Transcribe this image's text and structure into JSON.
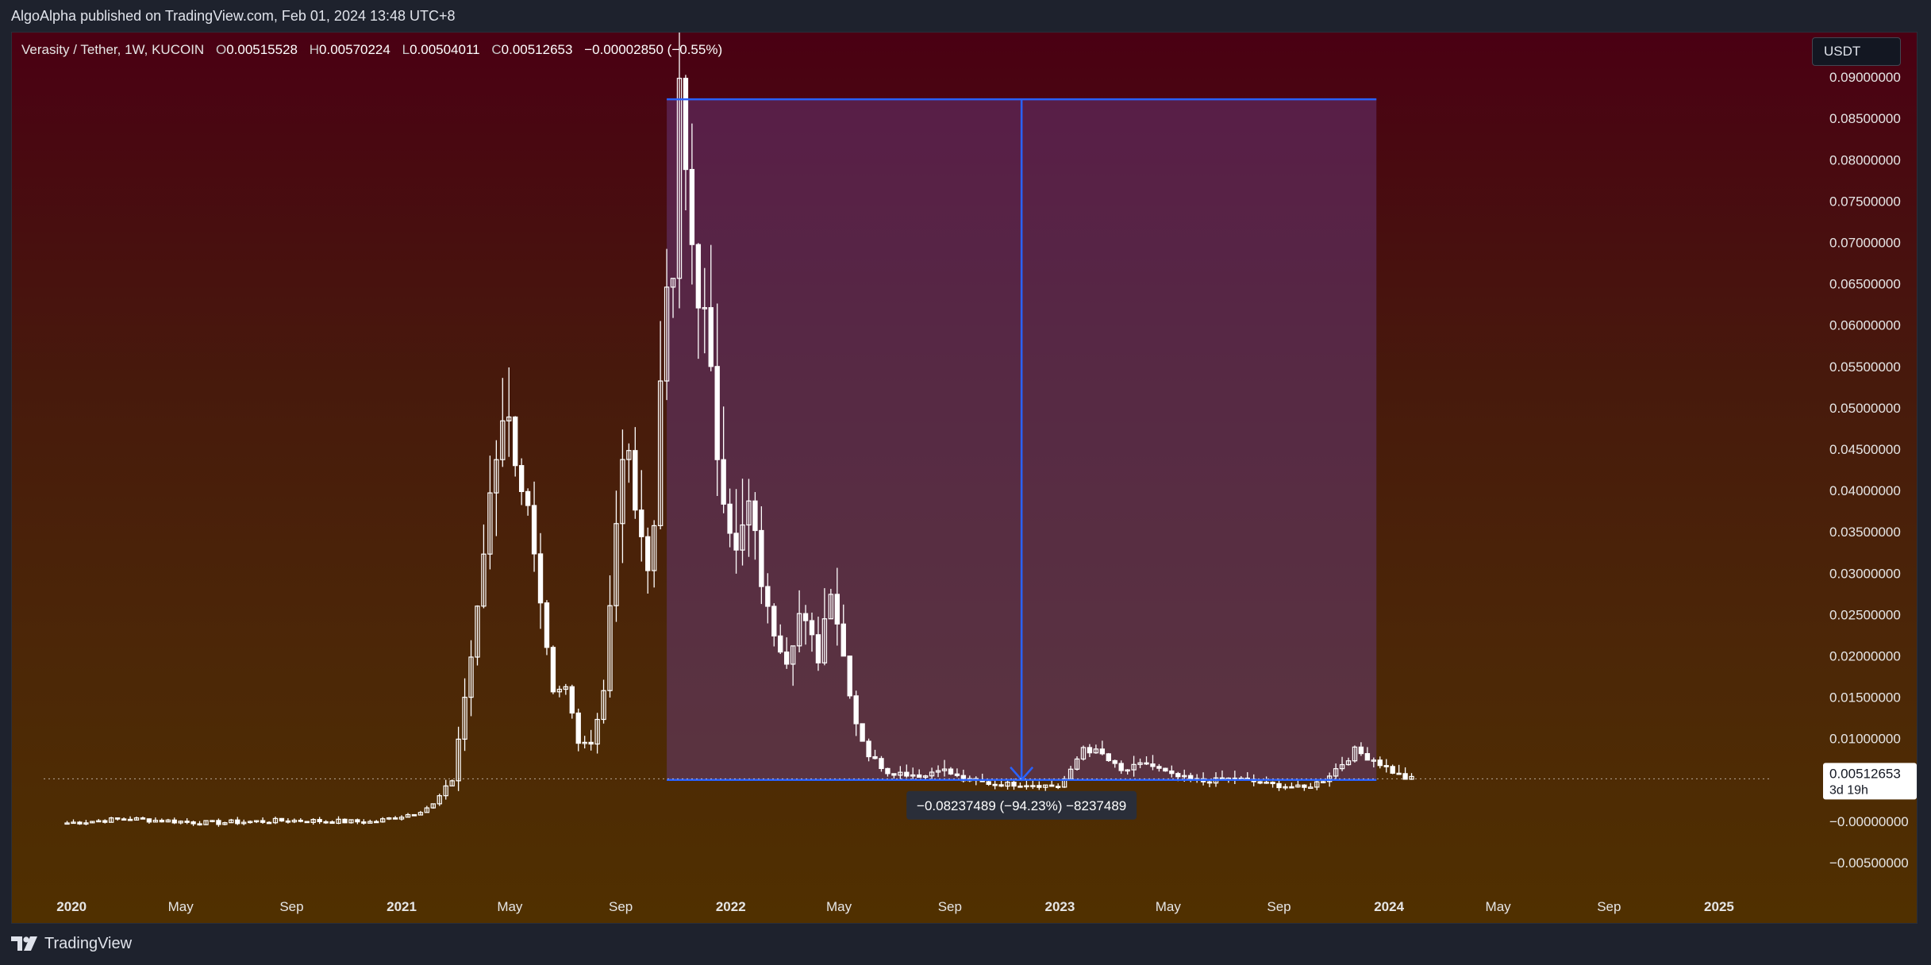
{
  "header": {
    "published": "AlgoAlpha published on TradingView.com, Feb 01, 2024 13:48 UTC+8"
  },
  "legend": {
    "symbol": "Verasity / Tether, 1W, KUCOIN",
    "o_label": "O",
    "o": "0.00515528",
    "h_label": "H",
    "h": "0.00570224",
    "l_label": "L",
    "l": "0.00504011",
    "c_label": "C",
    "c": "0.00512653",
    "change": "−0.00002850 (−0.55%)"
  },
  "currency_button": {
    "label": "USDT"
  },
  "footer": {
    "brand": "TradingView"
  },
  "colors": {
    "candle": "#ffffff",
    "measure": "#2962ff",
    "measure_fill": "#6a3f8a",
    "tooltip_bg": "#2a2e39"
  },
  "chart_data": {
    "type": "candlestick",
    "xlabel": "",
    "ylabel": "",
    "ylim": [
      -0.0075,
      0.0925
    ],
    "xlim": [
      "2019-12-01",
      "2025-03-01"
    ],
    "yticks": [
      "0.09000000",
      "0.08500000",
      "0.08000000",
      "0.07500000",
      "0.07000000",
      "0.06500000",
      "0.06000000",
      "0.05500000",
      "0.05000000",
      "0.04500000",
      "0.04000000",
      "0.03500000",
      "0.03000000",
      "0.02500000",
      "0.02000000",
      "0.01500000",
      "0.01000000",
      "0.00500000",
      "−0.00000000",
      "−0.00500000"
    ],
    "xticks": [
      {
        "label": "2020",
        "date": "2020-01-01"
      },
      {
        "label": "May",
        "date": "2020-05-01"
      },
      {
        "label": "Sep",
        "date": "2020-09-01"
      },
      {
        "label": "2021",
        "date": "2021-01-01"
      },
      {
        "label": "May",
        "date": "2021-05-01"
      },
      {
        "label": "Sep",
        "date": "2021-09-01"
      },
      {
        "label": "2022",
        "date": "2022-01-01"
      },
      {
        "label": "May",
        "date": "2022-05-01"
      },
      {
        "label": "Sep",
        "date": "2022-09-01"
      },
      {
        "label": "2023",
        "date": "2023-01-01"
      },
      {
        "label": "May",
        "date": "2023-05-01"
      },
      {
        "label": "Sep",
        "date": "2023-09-01"
      },
      {
        "label": "2024",
        "date": "2024-01-01"
      },
      {
        "label": "May",
        "date": "2024-05-01"
      },
      {
        "label": "Sep",
        "date": "2024-09-01"
      },
      {
        "label": "2025",
        "date": "2025-01-01"
      }
    ],
    "price_label": {
      "value": "0.00512653",
      "countdown": "3d 19h"
    },
    "measure": {
      "start_date": "2021-10-22",
      "end_date": "2023-12-18",
      "high": 0.0873,
      "low": 0.005,
      "label": "−0.08237489 (−94.23%) −8237489"
    },
    "anchors": [
      {
        "date": "2019-12-27",
        "price": -0.0002
      },
      {
        "date": "2020-03-01",
        "price": 0.0003
      },
      {
        "date": "2020-06-01",
        "price": -0.0002
      },
      {
        "date": "2020-09-01",
        "price": 0.0001
      },
      {
        "date": "2020-12-01",
        "price": -0.0001
      },
      {
        "date": "2021-01-15",
        "price": 0.001
      },
      {
        "date": "2021-02-05",
        "price": 0.002
      },
      {
        "date": "2021-02-26",
        "price": 0.005
      },
      {
        "date": "2021-03-12",
        "price": 0.015
      },
      {
        "date": "2021-03-26",
        "price": 0.025
      },
      {
        "date": "2021-04-09",
        "price": 0.04
      },
      {
        "date": "2021-04-23",
        "price": 0.05
      },
      {
        "date": "2021-05-07",
        "price": 0.045
      },
      {
        "date": "2021-05-21",
        "price": 0.037
      },
      {
        "date": "2021-06-04",
        "price": 0.025
      },
      {
        "date": "2021-06-18",
        "price": 0.015
      },
      {
        "date": "2021-07-02",
        "price": 0.016
      },
      {
        "date": "2021-07-16",
        "price": 0.01
      },
      {
        "date": "2021-07-30",
        "price": 0.0095
      },
      {
        "date": "2021-08-13",
        "price": 0.016
      },
      {
        "date": "2021-08-27",
        "price": 0.035
      },
      {
        "date": "2021-09-03",
        "price": 0.045
      },
      {
        "date": "2021-09-17",
        "price": 0.04
      },
      {
        "date": "2021-10-01",
        "price": 0.03
      },
      {
        "date": "2021-10-08",
        "price": 0.036
      },
      {
        "date": "2021-10-15",
        "price": 0.056
      },
      {
        "date": "2021-10-29",
        "price": 0.066
      },
      {
        "date": "2021-11-05",
        "price": 0.086
      },
      {
        "date": "2021-11-19",
        "price": 0.07
      },
      {
        "date": "2021-12-03",
        "price": 0.06
      },
      {
        "date": "2021-12-17",
        "price": 0.045
      },
      {
        "date": "2022-01-07",
        "price": 0.032
      },
      {
        "date": "2022-01-21",
        "price": 0.038
      },
      {
        "date": "2022-02-11",
        "price": 0.025
      },
      {
        "date": "2022-03-04",
        "price": 0.02
      },
      {
        "date": "2022-03-18",
        "price": 0.025
      },
      {
        "date": "2022-04-08",
        "price": 0.02
      },
      {
        "date": "2022-04-22",
        "price": 0.029
      },
      {
        "date": "2022-05-06",
        "price": 0.02
      },
      {
        "date": "2022-05-20",
        "price": 0.012
      },
      {
        "date": "2022-06-03",
        "price": 0.008
      },
      {
        "date": "2022-06-24",
        "price": 0.006
      },
      {
        "date": "2022-08-05",
        "price": 0.0055
      },
      {
        "date": "2022-08-19",
        "price": 0.0065
      },
      {
        "date": "2022-09-16",
        "price": 0.005
      },
      {
        "date": "2022-10-21",
        "price": 0.0045
      },
      {
        "date": "2022-11-25",
        "price": 0.0045
      },
      {
        "date": "2022-12-30",
        "price": 0.0042
      },
      {
        "date": "2023-01-13",
        "price": 0.006
      },
      {
        "date": "2023-01-27",
        "price": 0.009
      },
      {
        "date": "2023-02-17",
        "price": 0.008
      },
      {
        "date": "2023-03-10",
        "price": 0.006
      },
      {
        "date": "2023-04-07",
        "price": 0.007
      },
      {
        "date": "2023-05-05",
        "price": 0.0055
      },
      {
        "date": "2023-06-09",
        "price": 0.0048
      },
      {
        "date": "2023-07-14",
        "price": 0.0052
      },
      {
        "date": "2023-08-18",
        "price": 0.0045
      },
      {
        "date": "2023-09-29",
        "price": 0.004
      },
      {
        "date": "2023-10-20",
        "price": 0.005
      },
      {
        "date": "2023-11-10",
        "price": 0.007
      },
      {
        "date": "2023-11-24",
        "price": 0.0085
      },
      {
        "date": "2023-12-15",
        "price": 0.0075
      },
      {
        "date": "2024-01-05",
        "price": 0.006
      },
      {
        "date": "2024-01-19",
        "price": 0.0052
      },
      {
        "date": "2024-02-01",
        "price": 0.00512653
      }
    ]
  }
}
